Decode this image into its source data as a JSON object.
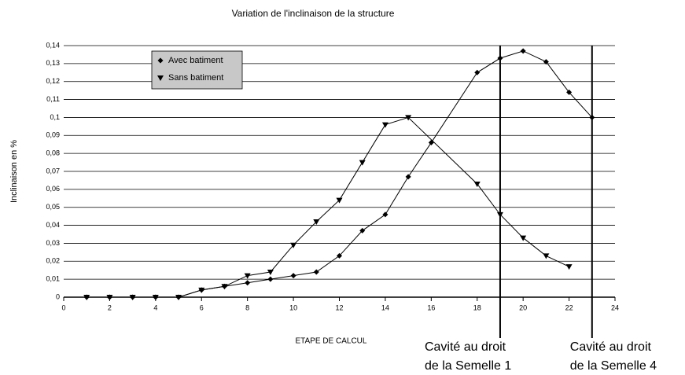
{
  "chart_data": {
    "type": "line",
    "title": "Variation de l'inclinaison de la structure",
    "xlabel": "ETAPE DE CALCUL",
    "ylabel": "Inclinaison en %",
    "xlim": [
      0,
      24
    ],
    "xticks": [
      0,
      2,
      4,
      6,
      8,
      10,
      12,
      14,
      16,
      18,
      20,
      22,
      24
    ],
    "ylim": [
      0,
      0.14
    ],
    "yticks": [
      0,
      {
        "value": 0.01,
        "label": "0,01"
      },
      {
        "value": 0.02,
        "label": "0,02"
      },
      {
        "value": 0.03,
        "label": "0,03"
      },
      {
        "value": 0.04,
        "label": "0,04"
      },
      {
        "value": 0.05,
        "label": "0,05"
      },
      {
        "value": 0.06,
        "label": "0,06"
      },
      {
        "value": 0.07,
        "label": "0,07"
      },
      {
        "value": 0.08,
        "label": "0,08"
      },
      {
        "value": 0.09,
        "label": "0,09"
      },
      {
        "value": 0.1,
        "label": "0,1"
      },
      {
        "value": 0.11,
        "label": "0,11"
      },
      {
        "value": 0.12,
        "label": "0,12"
      },
      {
        "value": 0.13,
        "label": "0,13"
      },
      {
        "value": 0.14,
        "label": "0,14"
      }
    ],
    "grid": true,
    "legend": "upper left",
    "series": [
      {
        "name": "Avec batiment",
        "color": "#000000",
        "marker": "diamond",
        "x": [
          1,
          2,
          3,
          4,
          5,
          6,
          7,
          8,
          9,
          10,
          11,
          12,
          13,
          14,
          15,
          16,
          18,
          19,
          20,
          21,
          22,
          23
        ],
        "values": [
          0,
          0,
          0,
          0,
          0,
          0.004,
          0.006,
          0.008,
          0.01,
          0.012,
          0.014,
          0.023,
          0.037,
          0.046,
          0.067,
          0.086,
          0.125,
          0.133,
          0.137,
          0.131,
          0.114,
          0.1
        ]
      },
      {
        "name": "Sans batiment",
        "color": "#000000",
        "marker": "triangle",
        "x": [
          1,
          2,
          3,
          4,
          5,
          6,
          7,
          8,
          9,
          10,
          11,
          12,
          13,
          14,
          15,
          18,
          19,
          20,
          21,
          22
        ],
        "values": [
          0,
          0,
          0,
          0,
          0,
          0.004,
          0.006,
          0.012,
          0.014,
          0.029,
          0.042,
          0.054,
          0.075,
          0.096,
          0.1,
          0.063,
          0.046,
          0.033,
          0.023,
          0.017
        ]
      }
    ],
    "annotations": [
      {
        "x": 19,
        "lines": [
          "Cavité au droit",
          "de la Semelle 1"
        ]
      },
      {
        "x": 23,
        "lines": [
          "Cavité au droit",
          "de la Semelle 4"
        ]
      }
    ]
  }
}
